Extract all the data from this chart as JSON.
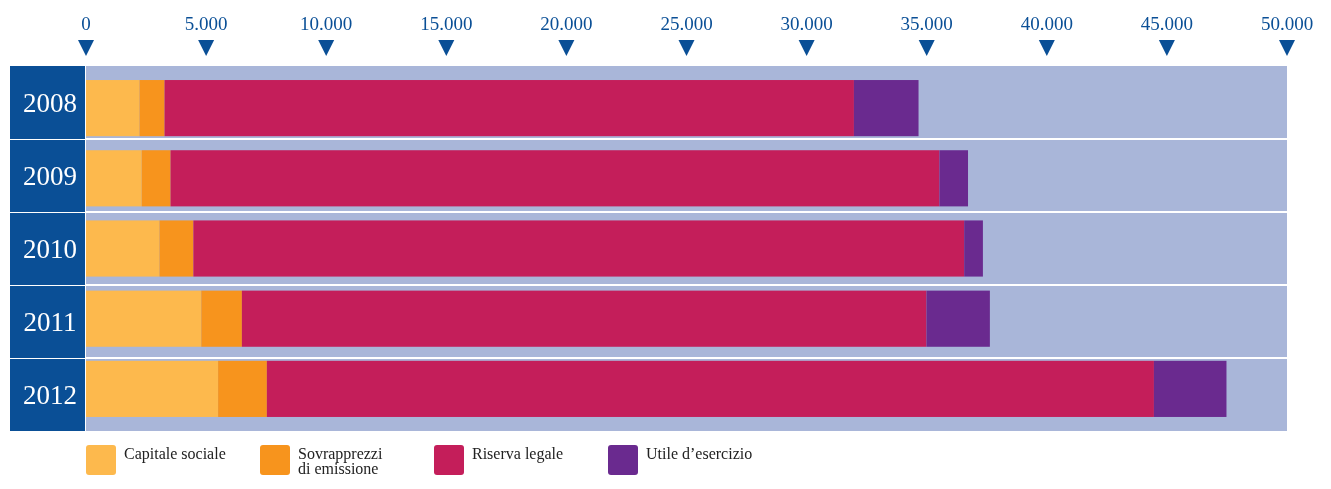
{
  "chart_data": {
    "type": "bar",
    "orientation": "horizontal",
    "stacked": true,
    "categories": [
      "2008",
      "2009",
      "2010",
      "2011",
      "2012"
    ],
    "series": [
      {
        "name": "Capitale sociale",
        "color": "#fdb94d",
        "values": [
          2230,
          2320,
          3060,
          4800,
          5500
        ]
      },
      {
        "name": "Sovrapprezzi di emissione",
        "color": "#f7941d",
        "values": [
          1040,
          1200,
          1410,
          1690,
          2030
        ]
      },
      {
        "name": "Riserva legale",
        "color": "#c41e5a",
        "values": [
          28700,
          32010,
          32090,
          28500,
          36930
        ]
      },
      {
        "name": "Utile d’esercizio",
        "color": "#6a2a8f",
        "values": [
          2690,
          1190,
          780,
          2640,
          3020
        ]
      }
    ],
    "xlim": [
      0,
      50000
    ],
    "xticks": [
      0,
      {
        "value": 5000,
        "label": "5.000"
      },
      {
        "value": 10000,
        "label": "10.000"
      },
      {
        "value": 15000,
        "label": "15.000"
      },
      {
        "value": 20000,
        "label": "20.000"
      },
      {
        "value": 25000,
        "label": "25.000"
      },
      {
        "value": 30000,
        "label": "30.000"
      },
      {
        "value": 35000,
        "label": "35.000"
      },
      {
        "value": 40000,
        "label": "40.000"
      },
      {
        "value": 45000,
        "label": "45.000"
      },
      {
        "value": 50000,
        "label": "50.000"
      }
    ],
    "bands": [
      {
        "axis": "x",
        "from": 0,
        "to": 50000,
        "color": "#a9b6d9"
      }
    ],
    "legend": "bottom"
  }
}
